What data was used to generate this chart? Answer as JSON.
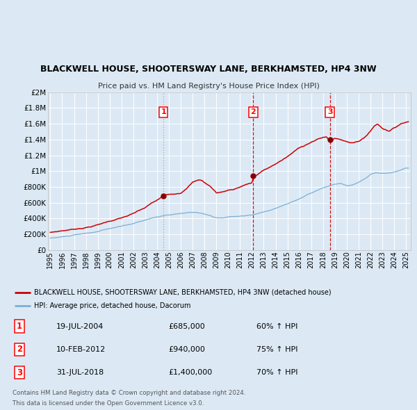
{
  "title": "BLACKWELL HOUSE, SHOOTERSWAY LANE, BERKHAMSTED, HP4 3NW",
  "subtitle": "Price paid vs. HM Land Registry's House Price Index (HPI)",
  "bg_color": "#dce9f5",
  "plot_bg_color": "#dce9f5",
  "grid_color": "#ffffff",
  "red_line_color": "#cc0000",
  "blue_line_color": "#7aafd4",
  "marker_color": "#880000",
  "vline1_color": "#aaaaaa",
  "vline2_color": "#cc0000",
  "purchases": [
    {
      "num": 1,
      "date_str": "19-JUL-2004",
      "date_x": 2004.54,
      "price": 685000,
      "pct": "60%",
      "dir": "↑"
    },
    {
      "num": 2,
      "date_str": "10-FEB-2012",
      "date_x": 2012.11,
      "price": 940000,
      "pct": "75%",
      "dir": "↑"
    },
    {
      "num": 3,
      "date_str": "31-JUL-2018",
      "date_x": 2018.58,
      "price": 1400000,
      "pct": "70%",
      "dir": "↑"
    }
  ],
  "legend1": "BLACKWELL HOUSE, SHOOTERSWAY LANE, BERKHAMSTED, HP4 3NW (detached house)",
  "legend2": "HPI: Average price, detached house, Dacorum",
  "footer1": "Contains HM Land Registry data © Crown copyright and database right 2024.",
  "footer2": "This data is licensed under the Open Government Licence v3.0.",
  "ylim": [
    0,
    2000000
  ],
  "yticks": [
    0,
    200000,
    400000,
    600000,
    800000,
    1000000,
    1200000,
    1400000,
    1600000,
    1800000,
    2000000
  ],
  "xlim": [
    1994.8,
    2025.4
  ],
  "xticks": [
    1995,
    1996,
    1997,
    1998,
    1999,
    2000,
    2001,
    2002,
    2003,
    2004,
    2005,
    2006,
    2007,
    2008,
    2009,
    2010,
    2011,
    2012,
    2013,
    2014,
    2015,
    2016,
    2017,
    2018,
    2019,
    2020,
    2021,
    2022,
    2023,
    2024,
    2025
  ]
}
